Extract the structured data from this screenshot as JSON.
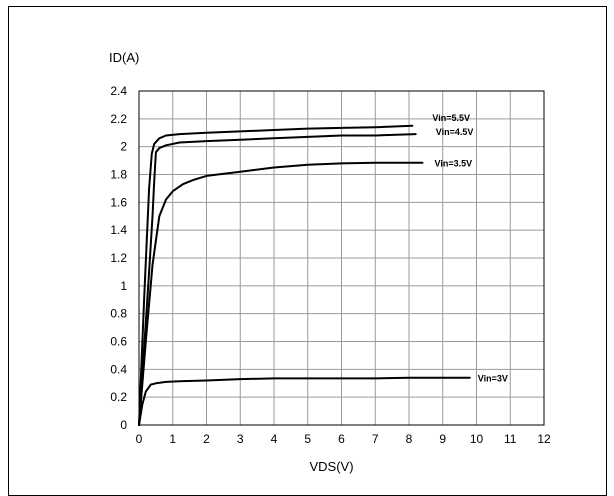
{
  "chart_data": {
    "type": "line",
    "xlabel": "VDS(V)",
    "ylabel": "ID(A)",
    "xlim": [
      0,
      12
    ],
    "ylim": [
      0,
      2.4
    ],
    "x_ticks": [
      "0",
      "1",
      "2",
      "3",
      "4",
      "5",
      "6",
      "7",
      "8",
      "9",
      "10",
      "11",
      "12"
    ],
    "y_ticks": [
      "0",
      "0.2",
      "0.4",
      "0.6",
      "0.8",
      "1",
      "1.2",
      "1.4",
      "1.6",
      "1.8",
      "2",
      "2.2",
      "2.4"
    ],
    "grid": true,
    "line_color": "#000000",
    "series": [
      {
        "name": "Vin=5.5V",
        "x": [
          0,
          0.15,
          0.3,
          0.38,
          0.45,
          0.6,
          0.8,
          1.2,
          2,
          3,
          4,
          5,
          6,
          7,
          8.1
        ],
        "y": [
          0,
          0.9,
          1.7,
          1.95,
          2.02,
          2.06,
          2.08,
          2.09,
          2.1,
          2.11,
          2.12,
          2.13,
          2.135,
          2.14,
          2.15
        ]
      },
      {
        "name": "Vin=4.5V",
        "x": [
          0,
          0.15,
          0.3,
          0.4,
          0.45,
          0.5,
          0.6,
          0.8,
          1.2,
          2,
          3,
          4,
          5,
          6,
          7,
          8.2
        ],
        "y": [
          0,
          0.55,
          1.1,
          1.5,
          1.75,
          1.96,
          1.99,
          2.01,
          2.03,
          2.04,
          2.05,
          2.06,
          2.07,
          2.08,
          2.08,
          2.09
        ]
      },
      {
        "name": "Vin=3.5V",
        "x": [
          0,
          0.2,
          0.4,
          0.6,
          0.8,
          1.0,
          1.3,
          1.6,
          2,
          3,
          4,
          5,
          6,
          7,
          8.4
        ],
        "y": [
          0,
          0.6,
          1.15,
          1.5,
          1.62,
          1.68,
          1.73,
          1.76,
          1.79,
          1.82,
          1.85,
          1.87,
          1.88,
          1.885,
          1.885
        ]
      },
      {
        "name": "Vin=3V",
        "x": [
          0,
          0.1,
          0.2,
          0.35,
          0.5,
          0.8,
          1.2,
          2,
          3,
          4,
          5,
          6,
          7,
          8,
          9,
          9.8
        ],
        "y": [
          0,
          0.15,
          0.24,
          0.29,
          0.3,
          0.31,
          0.315,
          0.32,
          0.33,
          0.335,
          0.335,
          0.335,
          0.335,
          0.34,
          0.34,
          0.34
        ]
      }
    ]
  }
}
